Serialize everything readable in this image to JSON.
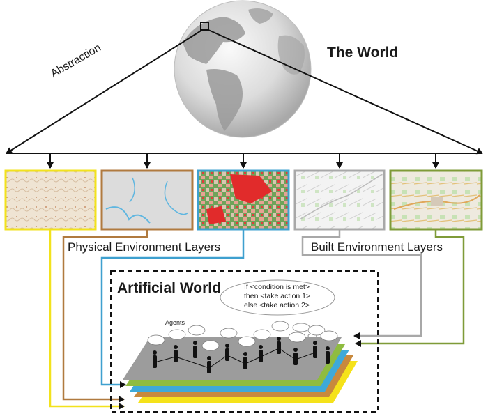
{
  "world": {
    "title": "The World",
    "abstraction_label": "Abstraction"
  },
  "layers": {
    "physical_label": "Physical Environment Layers",
    "built_label": "Built Environment Layers",
    "frame_colors": [
      "#f2e21c",
      "#b07a3f",
      "#3ea0cf",
      "#a8a8a8",
      "#7f9b38"
    ]
  },
  "artificial": {
    "title": "Artificial World",
    "rule_lines": [
      "If <condition is met>",
      "then <take action 1>",
      "else <take action 2>"
    ],
    "agents_label": "Agents",
    "stack_colors": [
      "#f5e21a",
      "#c8893d",
      "#3ea9d8",
      "#8fbc3f"
    ]
  }
}
